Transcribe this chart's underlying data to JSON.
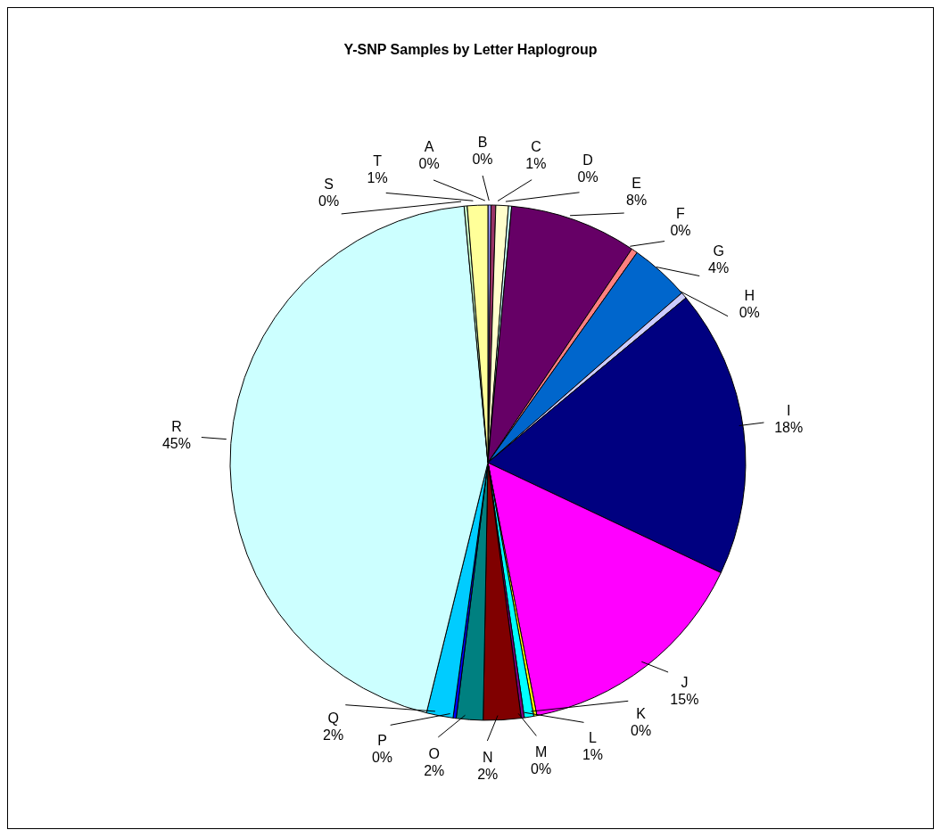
{
  "chart_data": {
    "type": "pie",
    "title": "Y-SNP Samples by Letter Haplogroup",
    "categories": [
      "A",
      "B",
      "C",
      "D",
      "E",
      "F",
      "G",
      "H",
      "I",
      "J",
      "K",
      "L",
      "M",
      "N",
      "O",
      "P",
      "Q",
      "R",
      "S",
      "T"
    ],
    "values": [
      0.2,
      0.3,
      0.8,
      0.2,
      8.1,
      0.4,
      3.8,
      0.4,
      18.4,
      15.2,
      0.2,
      0.6,
      0.2,
      2.4,
      1.7,
      0.2,
      1.7,
      45.5,
      0.2,
      1.3
    ],
    "value_labels": [
      "0%",
      "0%",
      "1%",
      "0%",
      "8%",
      "0%",
      "4%",
      "0%",
      "18%",
      "15%",
      "0%",
      "1%",
      "0%",
      "2%",
      "2%",
      "0%",
      "2%",
      "45%",
      "0%",
      "1%"
    ],
    "colors": [
      "#9999ff",
      "#993366",
      "#ffffcc",
      "#ccffff",
      "#660066",
      "#ff8080",
      "#0066cc",
      "#ccccff",
      "#000080",
      "#ff00ff",
      "#ffff00",
      "#00ffff",
      "#800080",
      "#800000",
      "#008080",
      "#0000ff",
      "#00ccff",
      "#ccffff",
      "#ccffcc",
      "#ffff99"
    ]
  }
}
